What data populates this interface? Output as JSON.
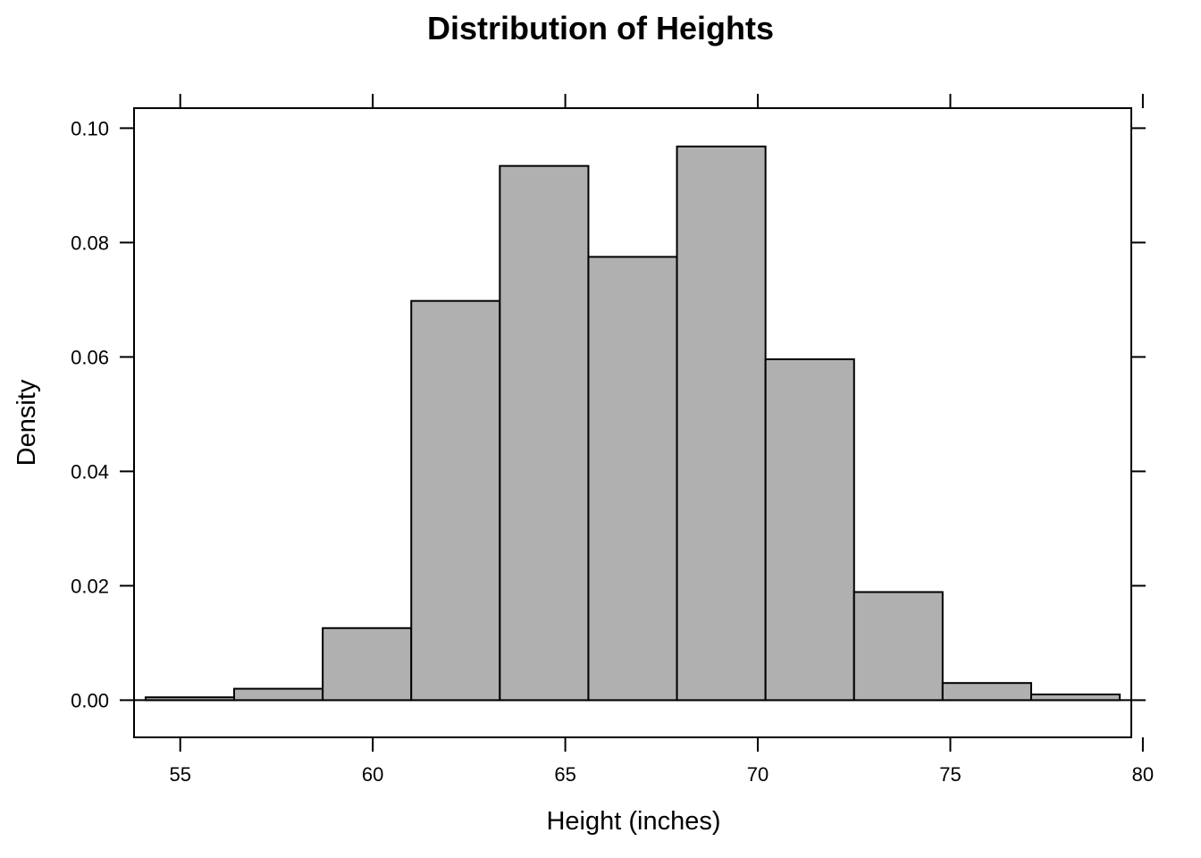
{
  "chart_data": {
    "type": "histogram",
    "title": "Distribution of Heights",
    "xlabel": "Height (inches)",
    "ylabel": "Density",
    "xlim": [
      53.8,
      79.7
    ],
    "ylim": [
      -0.0065,
      0.1035
    ],
    "x_ticks": [
      55,
      60,
      65,
      70,
      75,
      80
    ],
    "x_tick_labels": [
      "55",
      "60",
      "65",
      "70",
      "75",
      "80"
    ],
    "y_ticks": [
      0.0,
      0.02,
      0.04,
      0.06,
      0.08,
      0.1
    ],
    "y_tick_labels": [
      "0.00",
      "0.02",
      "0.04",
      "0.06",
      "0.08",
      "0.10"
    ],
    "bins": [
      {
        "x0": 54.1,
        "x1": 56.4,
        "density": 0.0005
      },
      {
        "x0": 56.4,
        "x1": 58.7,
        "density": 0.002
      },
      {
        "x0": 58.7,
        "x1": 61.0,
        "density": 0.0126
      },
      {
        "x0": 61.0,
        "x1": 63.3,
        "density": 0.0698
      },
      {
        "x0": 63.3,
        "x1": 65.6,
        "density": 0.0934
      },
      {
        "x0": 65.6,
        "x1": 67.9,
        "density": 0.0775
      },
      {
        "x0": 67.9,
        "x1": 70.2,
        "density": 0.0968
      },
      {
        "x0": 70.2,
        "x1": 72.5,
        "density": 0.0596
      },
      {
        "x0": 72.5,
        "x1": 74.8,
        "density": 0.0189
      },
      {
        "x0": 74.8,
        "x1": 77.1,
        "density": 0.003
      },
      {
        "x0": 77.1,
        "x1": 79.4,
        "density": 0.001
      }
    ],
    "colors": {
      "bar_fill": "#b0b0b0",
      "bar_stroke": "#000000"
    },
    "grid": false,
    "legend": "none"
  }
}
